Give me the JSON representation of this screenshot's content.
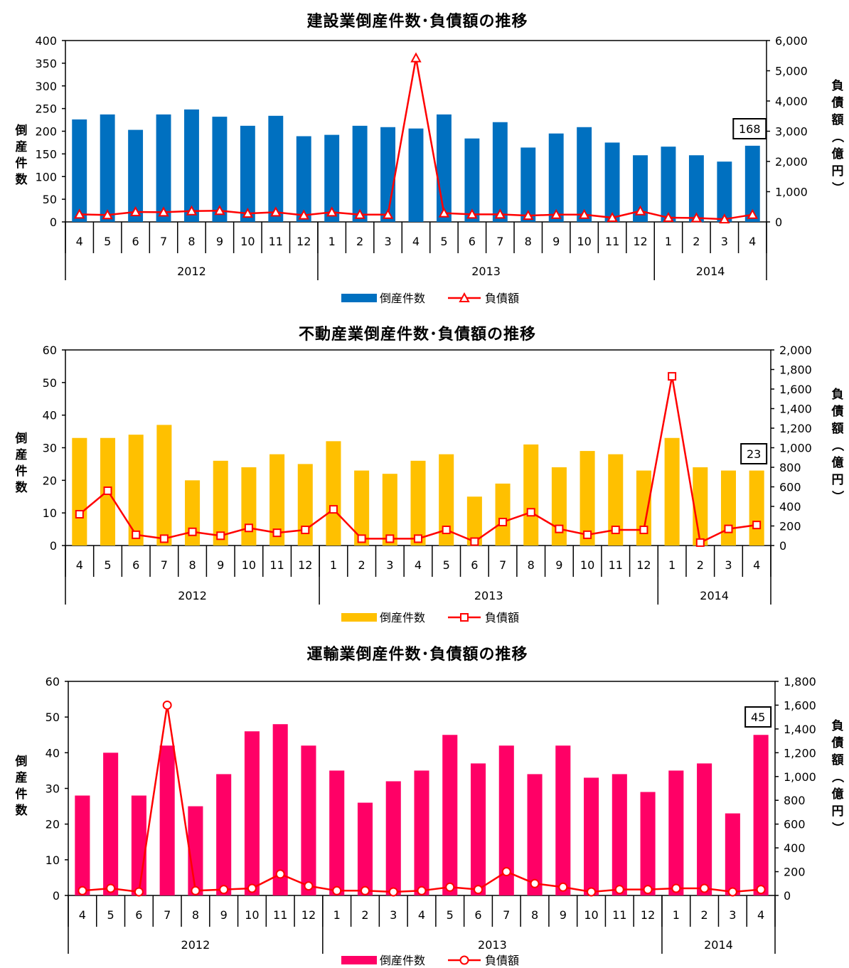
{
  "chart_data": [
    {
      "type": "bar",
      "title": "建設業倒産件数･負債額の推移",
      "ylabel": "倒産件数",
      "y2label": "負債額（億円）",
      "ylim": [
        0,
        400
      ],
      "yticks": [
        "0",
        "50",
        "100",
        "150",
        "200",
        "250",
        "300",
        "350",
        "400"
      ],
      "y2lim": [
        0,
        6000
      ],
      "y2ticks": [
        "0",
        "1,000",
        "2,000",
        "3,000",
        "4,000",
        "5,000",
        "6,000"
      ],
      "categories": [
        "4",
        "5",
        "6",
        "7",
        "8",
        "9",
        "10",
        "11",
        "12",
        "1",
        "2",
        "3",
        "4",
        "5",
        "6",
        "7",
        "8",
        "9",
        "10",
        "11",
        "12",
        "1",
        "2",
        "3",
        "4"
      ],
      "years": [
        {
          "label": "2012",
          "span": 9
        },
        {
          "label": "2013",
          "span": 12
        },
        {
          "label": "2014",
          "span": 4
        }
      ],
      "series": [
        {
          "name": "倒産件数",
          "kind": "bar",
          "color": "#0070C0",
          "values": [
            226,
            237,
            203,
            237,
            248,
            232,
            212,
            234,
            189,
            192,
            212,
            209,
            206,
            237,
            184,
            220,
            164,
            195,
            209,
            175,
            147,
            166,
            147,
            133,
            168
          ]
        },
        {
          "name": "負債額",
          "kind": "line",
          "axis": "right",
          "marker": "triangle",
          "color": "#FF0000",
          "values": [
            250,
            230,
            330,
            320,
            360,
            370,
            280,
            320,
            220,
            320,
            240,
            240,
            5420,
            290,
            250,
            250,
            210,
            240,
            240,
            140,
            360,
            140,
            130,
            90,
            240
          ]
        }
      ],
      "callout": "168",
      "legend": "bottom"
    },
    {
      "type": "bar",
      "title": "不動産業倒産件数･負債額の推移",
      "ylabel": "倒産件数",
      "y2label": "負債額（億円）",
      "ylim": [
        0,
        60
      ],
      "yticks": [
        "0",
        "10",
        "20",
        "30",
        "40",
        "50",
        "60"
      ],
      "y2lim": [
        0,
        2000
      ],
      "y2ticks": [
        "0",
        "200",
        "400",
        "600",
        "800",
        "1,000",
        "1,200",
        "1,400",
        "1,600",
        "1,800",
        "2,000"
      ],
      "categories": [
        "4",
        "5",
        "6",
        "7",
        "8",
        "9",
        "10",
        "11",
        "12",
        "1",
        "2",
        "3",
        "4",
        "5",
        "6",
        "7",
        "8",
        "9",
        "10",
        "11",
        "12",
        "1",
        "2",
        "3",
        "4"
      ],
      "years": [
        {
          "label": "2012",
          "span": 9
        },
        {
          "label": "2013",
          "span": 12
        },
        {
          "label": "2014",
          "span": 4
        }
      ],
      "series": [
        {
          "name": "倒産件数",
          "kind": "bar",
          "color": "#FFC000",
          "values": [
            33,
            33,
            34,
            37,
            20,
            26,
            24,
            28,
            25,
            32,
            23,
            22,
            26,
            28,
            15,
            19,
            31,
            24,
            29,
            28,
            23,
            33,
            24,
            23,
            23
          ]
        },
        {
          "name": "負債額",
          "kind": "line",
          "axis": "right",
          "marker": "square",
          "color": "#FF0000",
          "values": [
            320,
            560,
            110,
            70,
            140,
            100,
            180,
            130,
            160,
            370,
            70,
            70,
            70,
            160,
            40,
            240,
            340,
            170,
            110,
            160,
            160,
            1730,
            30,
            170,
            210
          ]
        }
      ],
      "callout": "23",
      "legend": "bottom"
    },
    {
      "type": "bar",
      "title": "運輸業倒産件数･負債額の推移",
      "ylabel": "倒産件数",
      "y2label": "負債額（億円）",
      "ylim": [
        0,
        60
      ],
      "yticks": [
        "0",
        "10",
        "20",
        "30",
        "40",
        "50",
        "60"
      ],
      "y2lim": [
        0,
        1800
      ],
      "y2ticks": [
        "0",
        "200",
        "400",
        "600",
        "800",
        "1,000",
        "1,200",
        "1,400",
        "1,600",
        "1,800"
      ],
      "categories": [
        "4",
        "5",
        "6",
        "7",
        "8",
        "9",
        "10",
        "11",
        "12",
        "1",
        "2",
        "3",
        "4",
        "5",
        "6",
        "7",
        "8",
        "9",
        "10",
        "11",
        "12",
        "1",
        "2",
        "3",
        "4"
      ],
      "years": [
        {
          "label": "2012",
          "span": 9
        },
        {
          "label": "2013",
          "span": 12
        },
        {
          "label": "2014",
          "span": 4
        }
      ],
      "series": [
        {
          "name": "倒産件数",
          "kind": "bar",
          "color": "#FF0066",
          "values": [
            28,
            40,
            28,
            42,
            25,
            34,
            46,
            48,
            42,
            35,
            26,
            32,
            35,
            45,
            37,
            42,
            34,
            42,
            33,
            34,
            29,
            35,
            37,
            23,
            45
          ]
        },
        {
          "name": "負債額",
          "kind": "line",
          "axis": "right",
          "marker": "circle",
          "color": "#FF0000",
          "values": [
            40,
            60,
            30,
            1600,
            40,
            50,
            60,
            180,
            80,
            40,
            40,
            30,
            40,
            70,
            50,
            200,
            100,
            70,
            30,
            50,
            50,
            60,
            60,
            30,
            50
          ]
        }
      ],
      "callout": "45",
      "legend": "bottom"
    }
  ]
}
